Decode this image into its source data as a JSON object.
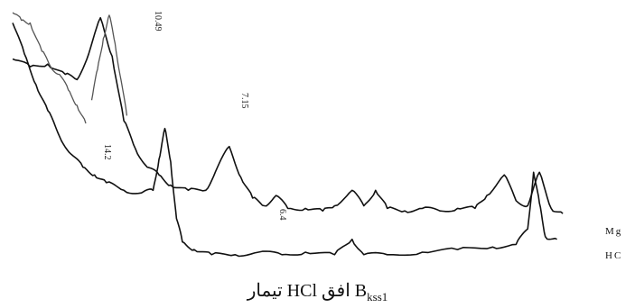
{
  "chart_data": {
    "type": "line",
    "title": "",
    "xlabel": "",
    "ylabel": "",
    "axes_visible": false,
    "grid": false,
    "legend": "none",
    "x_direction": "decreasing to the right (d-spacing)",
    "peak_labels": [
      "10.49",
      "14.2",
      "7.15",
      "6.4"
    ],
    "series": [
      {
        "name": "Mg",
        "color": "#111111",
        "peaks_d_spacing": [
          14.2,
          10.49,
          7.15,
          6.4
        ],
        "points_relative": [
          [
            0.0,
            0.82
          ],
          [
            0.03,
            0.79
          ],
          [
            0.06,
            0.8
          ],
          [
            0.09,
            0.76
          ],
          [
            0.11,
            0.74
          ],
          [
            0.13,
            0.84
          ],
          [
            0.15,
            0.98
          ],
          [
            0.17,
            0.83
          ],
          [
            0.19,
            0.58
          ],
          [
            0.21,
            0.47
          ],
          [
            0.23,
            0.4
          ],
          [
            0.25,
            0.37
          ],
          [
            0.27,
            0.33
          ],
          [
            0.3,
            0.31
          ],
          [
            0.33,
            0.31
          ],
          [
            0.35,
            0.4
          ],
          [
            0.37,
            0.48
          ],
          [
            0.39,
            0.36
          ],
          [
            0.41,
            0.28
          ],
          [
            0.43,
            0.25
          ],
          [
            0.45,
            0.29
          ],
          [
            0.47,
            0.24
          ],
          [
            0.5,
            0.24
          ],
          [
            0.53,
            0.23
          ],
          [
            0.55,
            0.25
          ],
          [
            0.58,
            0.31
          ],
          [
            0.6,
            0.25
          ],
          [
            0.62,
            0.31
          ],
          [
            0.64,
            0.24
          ],
          [
            0.67,
            0.23
          ],
          [
            0.7,
            0.24
          ],
          [
            0.73,
            0.23
          ],
          [
            0.76,
            0.24
          ],
          [
            0.79,
            0.24
          ],
          [
            0.81,
            0.29
          ],
          [
            0.84,
            0.37
          ],
          [
            0.86,
            0.27
          ],
          [
            0.88,
            0.25
          ],
          [
            0.9,
            0.38
          ],
          [
            0.92,
            0.24
          ],
          [
            0.94,
            0.22
          ]
        ]
      },
      {
        "name": "HC",
        "color": "#111111",
        "points_relative": [
          [
            0.0,
            0.96
          ],
          [
            0.02,
            0.84
          ],
          [
            0.04,
            0.72
          ],
          [
            0.06,
            0.62
          ],
          [
            0.08,
            0.52
          ],
          [
            0.1,
            0.45
          ],
          [
            0.12,
            0.4
          ],
          [
            0.14,
            0.37
          ],
          [
            0.16,
            0.34
          ],
          [
            0.19,
            0.31
          ],
          [
            0.22,
            0.3
          ],
          [
            0.24,
            0.31
          ],
          [
            0.25,
            0.43
          ],
          [
            0.26,
            0.55
          ],
          [
            0.27,
            0.42
          ],
          [
            0.28,
            0.2
          ],
          [
            0.29,
            0.11
          ],
          [
            0.31,
            0.08
          ],
          [
            0.34,
            0.06
          ],
          [
            0.38,
            0.06
          ],
          [
            0.42,
            0.07
          ],
          [
            0.46,
            0.06
          ],
          [
            0.5,
            0.07
          ],
          [
            0.55,
            0.06
          ],
          [
            0.58,
            0.12
          ],
          [
            0.6,
            0.06
          ],
          [
            0.64,
            0.06
          ],
          [
            0.7,
            0.07
          ],
          [
            0.76,
            0.08
          ],
          [
            0.82,
            0.09
          ],
          [
            0.86,
            0.1
          ],
          [
            0.88,
            0.16
          ],
          [
            0.89,
            0.38
          ],
          [
            0.9,
            0.26
          ],
          [
            0.91,
            0.13
          ],
          [
            0.93,
            0.12
          ]
        ]
      },
      {
        "name": "",
        "color": "#555555",
        "points_relative": [
          [
            0.0,
            1.0
          ],
          [
            0.015,
            0.97
          ],
          [
            0.03,
            0.96
          ],
          [
            0.05,
            0.85
          ],
          [
            0.065,
            0.79
          ],
          [
            0.08,
            0.76
          ],
          [
            0.095,
            0.7
          ],
          [
            0.11,
            0.64
          ],
          [
            0.125,
            0.57
          ]
        ]
      },
      {
        "name": "",
        "color": "#555555",
        "points_relative": [
          [
            0.135,
            0.66
          ],
          [
            0.145,
            0.78
          ],
          [
            0.155,
            0.9
          ],
          [
            0.165,
            0.99
          ],
          [
            0.175,
            0.88
          ],
          [
            0.185,
            0.74
          ],
          [
            0.195,
            0.6
          ]
        ]
      }
    ]
  },
  "caption": {
    "pre_text": "تیمار HCl افق B",
    "subscript": "kss1"
  }
}
